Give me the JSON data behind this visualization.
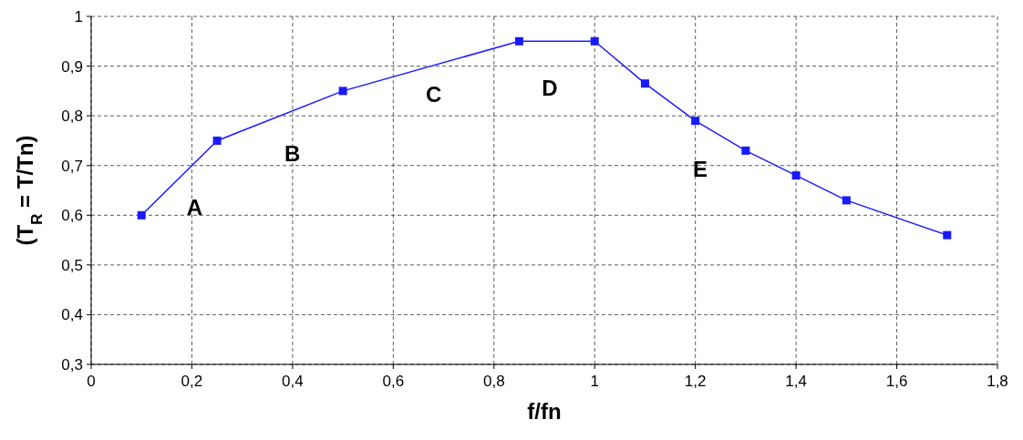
{
  "chart_data": {
    "type": "line",
    "xlabel": "f/fn",
    "ylabel": "(T$_{R}$ = T/Tn)",
    "x": [
      0.1,
      0.25,
      0.5,
      0.85,
      1,
      1.1,
      1.2,
      1.3,
      1.4,
      1.5,
      1.7
    ],
    "series": [
      {
        "color": "#1a1aff",
        "values": [
          0.6,
          0.75,
          0.85,
          0.95,
          0.95,
          0.865,
          0.79,
          0.73,
          0.68,
          0.63,
          0.56
        ]
      }
    ],
    "xlim": [
      0,
      1.8
    ],
    "ylim": [
      0.3,
      1
    ],
    "xticks": [
      0,
      {
        "value": 0.2,
        "label": "0,2"
      },
      {
        "value": 0.4,
        "label": "0,4"
      },
      {
        "value": 0.6,
        "label": "0,6"
      },
      {
        "value": 0.8,
        "label": "0,8"
      },
      1,
      {
        "value": 1.2,
        "label": "1,2"
      },
      {
        "value": 1.4,
        "label": "1,4"
      },
      {
        "value": 1.6,
        "label": "1,6"
      },
      {
        "value": 1.8,
        "label": "1,8"
      }
    ],
    "yticks": [
      {
        "value": 0.3,
        "label": "0,3"
      },
      {
        "value": 0.4,
        "label": "0,4"
      },
      {
        "value": 0.5,
        "label": "0,5"
      },
      {
        "value": 0.6,
        "label": "0,6"
      },
      {
        "value": 0.7,
        "label": "0,7"
      },
      {
        "value": 0.8,
        "label": "0,8"
      },
      {
        "value": 0.9,
        "label": "0,9"
      },
      1
    ],
    "grid": true,
    "marker": "square",
    "line_style": "solid",
    "annotations": [
      "A",
      "B",
      "C",
      "D",
      "E"
    ]
  }
}
